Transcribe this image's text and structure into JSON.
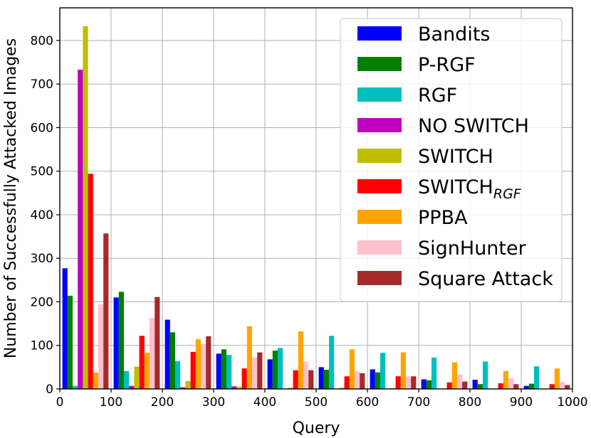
{
  "chart_data": {
    "type": "bar",
    "xlabel": "Query",
    "ylabel": "Number of Successfully Attacked Images",
    "xlim": [
      0,
      1000
    ],
    "ylim": [
      0,
      875
    ],
    "x_ticks": [
      0,
      100,
      200,
      300,
      400,
      500,
      600,
      700,
      800,
      900,
      1000
    ],
    "y_ticks": [
      0,
      100,
      200,
      300,
      400,
      500,
      600,
      700,
      800
    ],
    "grid": true,
    "legend_position": "top-right",
    "bin_centers": [
      50,
      150,
      250,
      350,
      450,
      550,
      650,
      750,
      850,
      950
    ],
    "series": [
      {
        "name": "Bandits",
        "subscript": "",
        "color": "#0000ff",
        "values": [
          277,
          210,
          159,
          81,
          68,
          50,
          45,
          22,
          21,
          7
        ]
      },
      {
        "name": "P-RGF",
        "subscript": "",
        "color": "#008000",
        "values": [
          214,
          223,
          130,
          91,
          88,
          44,
          38,
          20,
          11,
          12
        ]
      },
      {
        "name": "RGF",
        "subscript": "",
        "color": "#00bfbf",
        "values": [
          7,
          41,
          64,
          78,
          94,
          122,
          83,
          72,
          63,
          52
        ]
      },
      {
        "name": "NO SWITCH",
        "subscript": "",
        "color": "#bf00bf",
        "values": [
          733,
          7,
          4,
          6,
          0,
          0,
          0,
          0,
          0,
          0
        ]
      },
      {
        "name": "SWITCH",
        "subscript": "",
        "color": "#bfbf00",
        "values": [
          833,
          51,
          18,
          5,
          3,
          3,
          2,
          1,
          1,
          1
        ]
      },
      {
        "name": "SWITCH",
        "subscript": "RGF",
        "color": "#ff0000",
        "values": [
          494,
          122,
          85,
          47,
          43,
          29,
          29,
          15,
          13,
          11
        ]
      },
      {
        "name": "PPBA",
        "subscript": "",
        "color": "#ffa500",
        "values": [
          38,
          83,
          114,
          144,
          132,
          91,
          84,
          61,
          41,
          47
        ]
      },
      {
        "name": "SignHunter",
        "subscript": "",
        "color": "#ffc0cb",
        "values": [
          194,
          163,
          103,
          73,
          63,
          41,
          29,
          33,
          24,
          16
        ]
      },
      {
        "name": "Square Attack",
        "subscript": "",
        "color": "#a52a2a",
        "values": [
          357,
          211,
          121,
          84,
          43,
          36,
          29,
          17,
          11,
          9
        ]
      }
    ]
  }
}
